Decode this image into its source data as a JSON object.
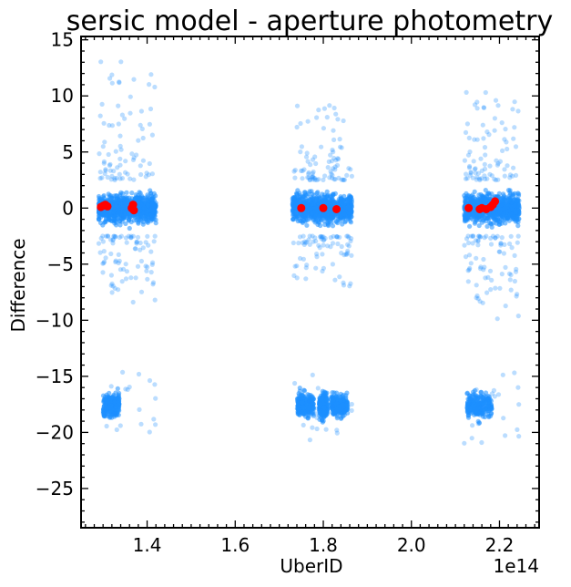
{
  "chart_data": {
    "type": "scatter",
    "title": "sersic model - aperture photometry",
    "xlabel": "UberID",
    "ylabel": "Difference",
    "x_offset_label": "1e14",
    "xlim": [
      1.25,
      2.29
    ],
    "ylim": [
      -28.5,
      15.3
    ],
    "x_ticks": [
      1.4,
      1.6,
      1.8,
      2.0,
      2.2
    ],
    "x_tick_labels": [
      "1.4",
      "1.6",
      "1.8",
      "2.0",
      "2.2"
    ],
    "y_ticks": [
      15,
      10,
      5,
      0,
      -5,
      -10,
      -15,
      -20,
      -25
    ],
    "y_tick_labels": [
      "15",
      "10",
      "5",
      "0",
      "−5",
      "−10",
      "−15",
      "−20",
      "−25"
    ],
    "grid": false,
    "legend": "none",
    "colors": {
      "light": "#1e90ff",
      "highlight": "#ff0000"
    },
    "clusters": [
      {
        "x_range": [
          1.29,
          1.42
        ],
        "y_core": [
          -2.5,
          2.5
        ],
        "y_spread": [
          -8.5,
          13.3
        ],
        "y_lower": [
          -20.5,
          -14.5
        ]
      },
      {
        "x_range": [
          1.73,
          1.865
        ],
        "y_core": [
          -2.5,
          2.5
        ],
        "y_spread": [
          -7,
          9.3
        ],
        "y_lower": [
          -20.8,
          -14.5
        ]
      },
      {
        "x_range": [
          2.12,
          2.245
        ],
        "y_core": [
          -2.5,
          2.5
        ],
        "y_spread": [
          -10,
          10.5
        ],
        "y_lower": [
          -21.8,
          -14.5
        ]
      }
    ],
    "series": [
      {
        "color": "#ff0000",
        "points": [
          {
            "x": 1.295,
            "y": 0.1
          },
          {
            "x": 1.3,
            "y": 0.2
          },
          {
            "x": 1.305,
            "y": 0.3
          },
          {
            "x": 1.31,
            "y": 0.15
          },
          {
            "x": 1.365,
            "y": 0.0
          },
          {
            "x": 1.368,
            "y": 0.3
          },
          {
            "x": 1.37,
            "y": -0.2
          },
          {
            "x": 1.75,
            "y": 0.0
          },
          {
            "x": 1.8,
            "y": 0.0
          },
          {
            "x": 1.83,
            "y": -0.1
          },
          {
            "x": 2.13,
            "y": 0.0
          },
          {
            "x": 2.155,
            "y": -0.1
          },
          {
            "x": 2.16,
            "y": 0.0
          },
          {
            "x": 2.17,
            "y": -0.1
          },
          {
            "x": 2.18,
            "y": 0.1
          },
          {
            "x": 2.185,
            "y": 0.3
          },
          {
            "x": 2.19,
            "y": 0.6
          }
        ]
      }
    ]
  }
}
